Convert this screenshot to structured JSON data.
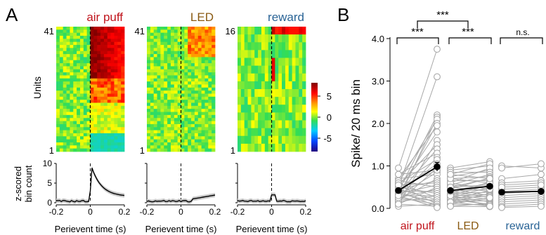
{
  "panels": {
    "a": "A",
    "b": "B"
  },
  "colors": {
    "air_puff": "#c0141c",
    "led": "#8a5a12",
    "reward": "#2a6496"
  },
  "heatmaps": {
    "colorbar_ticks": [
      "5",
      "0",
      "-5"
    ],
    "ylabel": "Units",
    "items": [
      {
        "title": "air puff",
        "color_key": "air_puff",
        "top_label": "41",
        "bottom_label": "1",
        "rows": 41,
        "pattern": "air"
      },
      {
        "title": "LED",
        "color_key": "led",
        "top_label": "41",
        "bottom_label": "1",
        "rows": 41,
        "pattern": "led"
      },
      {
        "title": "reward",
        "color_key": "reward",
        "top_label": "16",
        "bottom_label": "1",
        "rows": 16,
        "pattern": "reward"
      }
    ]
  },
  "psth": {
    "ylabel_line1": "z-scored",
    "ylabel_line2": "bin count",
    "xlabel": "Perievent time (s)",
    "yticks": [
      "10",
      "5",
      "0"
    ],
    "xticks": [
      "-0.2",
      "0",
      "0.2"
    ]
  },
  "chart_data": {
    "type": "scatter",
    "ylabel": "Spike/ 20 ms bin",
    "ylim": [
      0,
      4.0
    ],
    "yticks": [
      "0.0",
      "1.0",
      "2.0",
      "3.0",
      "4.0"
    ],
    "categories": [
      "air puff",
      "LED",
      "reward"
    ],
    "means": [
      {
        "left": 0.42,
        "right": 0.98
      },
      {
        "left": 0.42,
        "right": 0.52
      },
      {
        "left": 0.38,
        "right": 0.4
      }
    ],
    "significance": [
      {
        "label": "***",
        "between": "air puff"
      },
      {
        "label": "***",
        "between": "LED"
      },
      {
        "label": "n.s.",
        "between": "reward"
      },
      {
        "label": "***",
        "between": "air puff vs LED"
      }
    ],
    "pairs": {
      "air_puff": [
        [
          0.95,
          3.75
        ],
        [
          0.5,
          3.1
        ],
        [
          0.4,
          2.2
        ],
        [
          0.2,
          2.15
        ],
        [
          0.6,
          2.1
        ],
        [
          0.3,
          2.0
        ],
        [
          0.7,
          1.95
        ],
        [
          0.45,
          1.8
        ],
        [
          0.1,
          1.6
        ],
        [
          0.55,
          1.5
        ],
        [
          0.35,
          1.4
        ],
        [
          0.8,
          1.3
        ],
        [
          0.25,
          1.2
        ],
        [
          0.6,
          1.15
        ],
        [
          0.4,
          1.05
        ],
        [
          0.15,
          0.95
        ],
        [
          0.5,
          0.9
        ],
        [
          0.3,
          0.85
        ],
        [
          0.7,
          0.8
        ],
        [
          0.2,
          0.7
        ],
        [
          0.45,
          0.65
        ],
        [
          0.55,
          0.6
        ],
        [
          0.35,
          0.55
        ],
        [
          0.1,
          0.5
        ],
        [
          0.65,
          0.5
        ],
        [
          0.25,
          0.45
        ],
        [
          0.4,
          0.4
        ],
        [
          0.5,
          0.35
        ],
        [
          0.3,
          0.3
        ],
        [
          0.15,
          0.3
        ],
        [
          0.6,
          0.25
        ],
        [
          0.2,
          0.2
        ],
        [
          0.45,
          0.2
        ],
        [
          0.35,
          0.15
        ],
        [
          0.05,
          0.1
        ],
        [
          0.55,
          0.1
        ],
        [
          0.25,
          0.1
        ],
        [
          0.4,
          0.05
        ],
        [
          0.1,
          0.05
        ],
        [
          0.3,
          0.02
        ],
        [
          0.8,
          0.9
        ]
      ],
      "led": [
        [
          0.95,
          1.1
        ],
        [
          0.9,
          1.0
        ],
        [
          0.8,
          1.05
        ],
        [
          0.75,
          0.9
        ],
        [
          0.6,
          0.95
        ],
        [
          0.85,
          0.85
        ],
        [
          0.55,
          0.8
        ],
        [
          0.7,
          0.75
        ],
        [
          0.5,
          0.7
        ],
        [
          0.45,
          0.72
        ],
        [
          0.65,
          0.65
        ],
        [
          0.4,
          0.6
        ],
        [
          0.35,
          0.62
        ],
        [
          0.3,
          0.55
        ],
        [
          0.55,
          0.5
        ],
        [
          0.25,
          0.5
        ],
        [
          0.4,
          0.45
        ],
        [
          0.2,
          0.42
        ],
        [
          0.5,
          0.4
        ],
        [
          0.35,
          0.38
        ],
        [
          0.15,
          0.35
        ],
        [
          0.3,
          0.32
        ],
        [
          0.45,
          0.3
        ],
        [
          0.25,
          0.28
        ],
        [
          0.1,
          0.25
        ],
        [
          0.2,
          0.22
        ],
        [
          0.35,
          0.2
        ],
        [
          0.15,
          0.18
        ],
        [
          0.3,
          0.15
        ],
        [
          0.05,
          0.12
        ],
        [
          0.2,
          0.1
        ],
        [
          0.1,
          0.08
        ],
        [
          0.25,
          0.08
        ],
        [
          0.15,
          0.05
        ],
        [
          0.05,
          0.04
        ],
        [
          0.3,
          0.05
        ],
        [
          0.6,
          0.45
        ],
        [
          0.5,
          0.55
        ],
        [
          0.7,
          0.6
        ],
        [
          0.4,
          0.25
        ],
        [
          0.8,
          0.7
        ]
      ],
      "reward": [
        [
          1.0,
          0.95
        ],
        [
          0.95,
          1.05
        ],
        [
          0.7,
          0.8
        ],
        [
          0.6,
          0.65
        ],
        [
          0.55,
          0.6
        ],
        [
          0.45,
          0.5
        ],
        [
          0.4,
          0.45
        ],
        [
          0.35,
          0.4
        ],
        [
          0.3,
          0.35
        ],
        [
          0.25,
          0.3
        ],
        [
          0.2,
          0.25
        ],
        [
          0.15,
          0.2
        ],
        [
          0.1,
          0.15
        ],
        [
          0.05,
          0.1
        ],
        [
          0.02,
          0.05
        ],
        [
          0.5,
          0.55
        ]
      ]
    }
  }
}
